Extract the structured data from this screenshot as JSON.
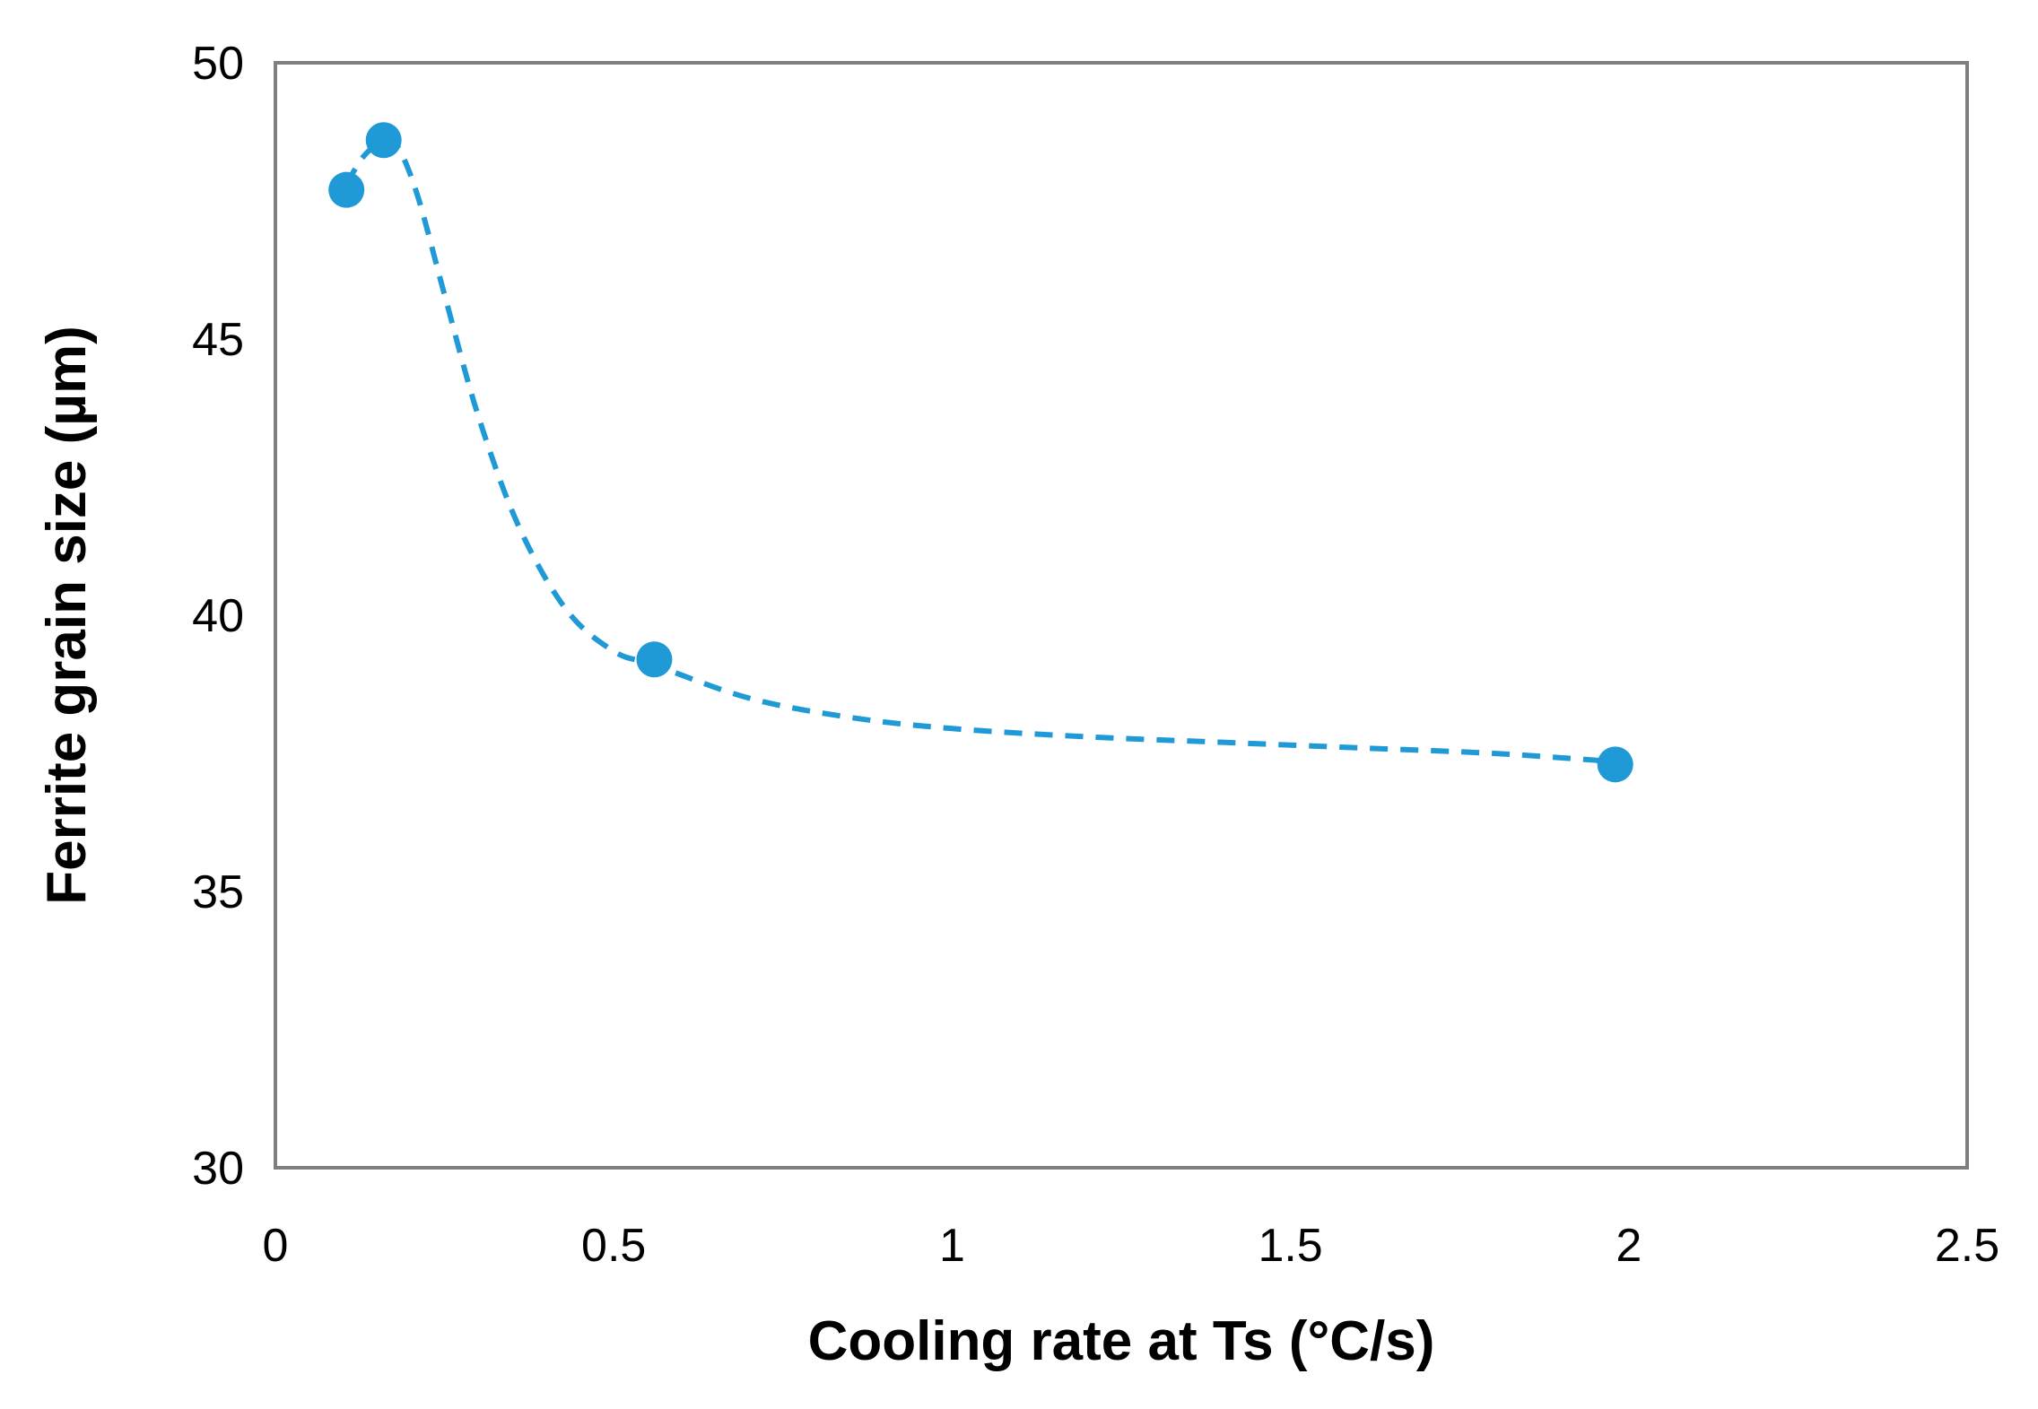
{
  "chart_data": {
    "type": "scatter",
    "title": "",
    "xlabel": "Cooling rate at Ts (°C/s)",
    "ylabel": "Ferrite grain size (µm)",
    "xlim": [
      0,
      2.5
    ],
    "ylim": [
      30,
      50
    ],
    "xticks": [
      0,
      0.5,
      1,
      1.5,
      2,
      2.5
    ],
    "xtick_labels": [
      "0",
      "0.5",
      "1",
      "1.5",
      "2",
      "2.5"
    ],
    "yticks": [
      30,
      35,
      40,
      45,
      50
    ],
    "ytick_labels": [
      "30",
      "35",
      "40",
      "45",
      "50"
    ],
    "grid": false,
    "legend": "none",
    "series": [
      {
        "name": "Ferrite grain size",
        "x": [
          0.105,
          0.16,
          0.56,
          1.98
        ],
        "y": [
          47.7,
          48.6,
          39.2,
          37.3
        ],
        "color": "#1f9ad6"
      }
    ],
    "trendline": {
      "style": "dashed",
      "color": "#1f9ad6",
      "x": [
        0.105,
        0.13,
        0.16,
        0.18,
        0.21,
        0.25,
        0.3,
        0.36,
        0.43,
        0.5,
        0.56,
        0.7,
        0.85,
        1.0,
        1.2,
        1.4,
        1.6,
        1.8,
        1.98
      ],
      "y": [
        47.8,
        48.3,
        48.6,
        48.5,
        47.6,
        45.8,
        43.6,
        41.6,
        40.1,
        39.35,
        39.1,
        38.5,
        38.15,
        37.95,
        37.8,
        37.7,
        37.6,
        37.5,
        37.35
      ]
    }
  }
}
